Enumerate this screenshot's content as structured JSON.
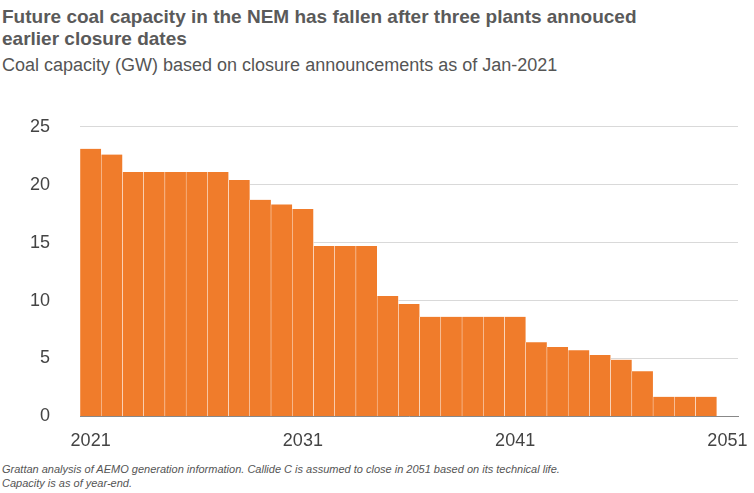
{
  "chart_data": {
    "type": "bar",
    "title": "Future coal capacity in the NEM has fallen after three plants annouced earlier closure dates",
    "subtitle": "Coal capacity (GW) based on closure announcements as of Jan-2021",
    "caption": [
      "Grattan analysis of AEMO generation information. Callide C is assumed to close in 2051 based on its technical life.",
      "Capacity is as of year-end."
    ],
    "categories": [
      "2021",
      null,
      null,
      null,
      null,
      null,
      null,
      null,
      null,
      null,
      "2031",
      null,
      null,
      null,
      null,
      null,
      null,
      null,
      null,
      null,
      "2041",
      null,
      null,
      null,
      null,
      null,
      null,
      null,
      null,
      null,
      "2051"
    ],
    "values": [
      23.1,
      22.6,
      21.1,
      21.1,
      21.1,
      21.1,
      21.1,
      20.4,
      18.7,
      18.3,
      17.9,
      14.7,
      14.7,
      14.7,
      10.4,
      9.7,
      8.6,
      8.6,
      8.6,
      8.6,
      8.6,
      6.4,
      6.0,
      5.7,
      5.3,
      4.9,
      3.9,
      1.7,
      1.7,
      1.7,
      0
    ],
    "color": "#f07c2b",
    "ylim": [
      0,
      25
    ],
    "yticks": [
      0,
      5,
      10,
      15,
      20,
      25
    ],
    "grid": true
  }
}
